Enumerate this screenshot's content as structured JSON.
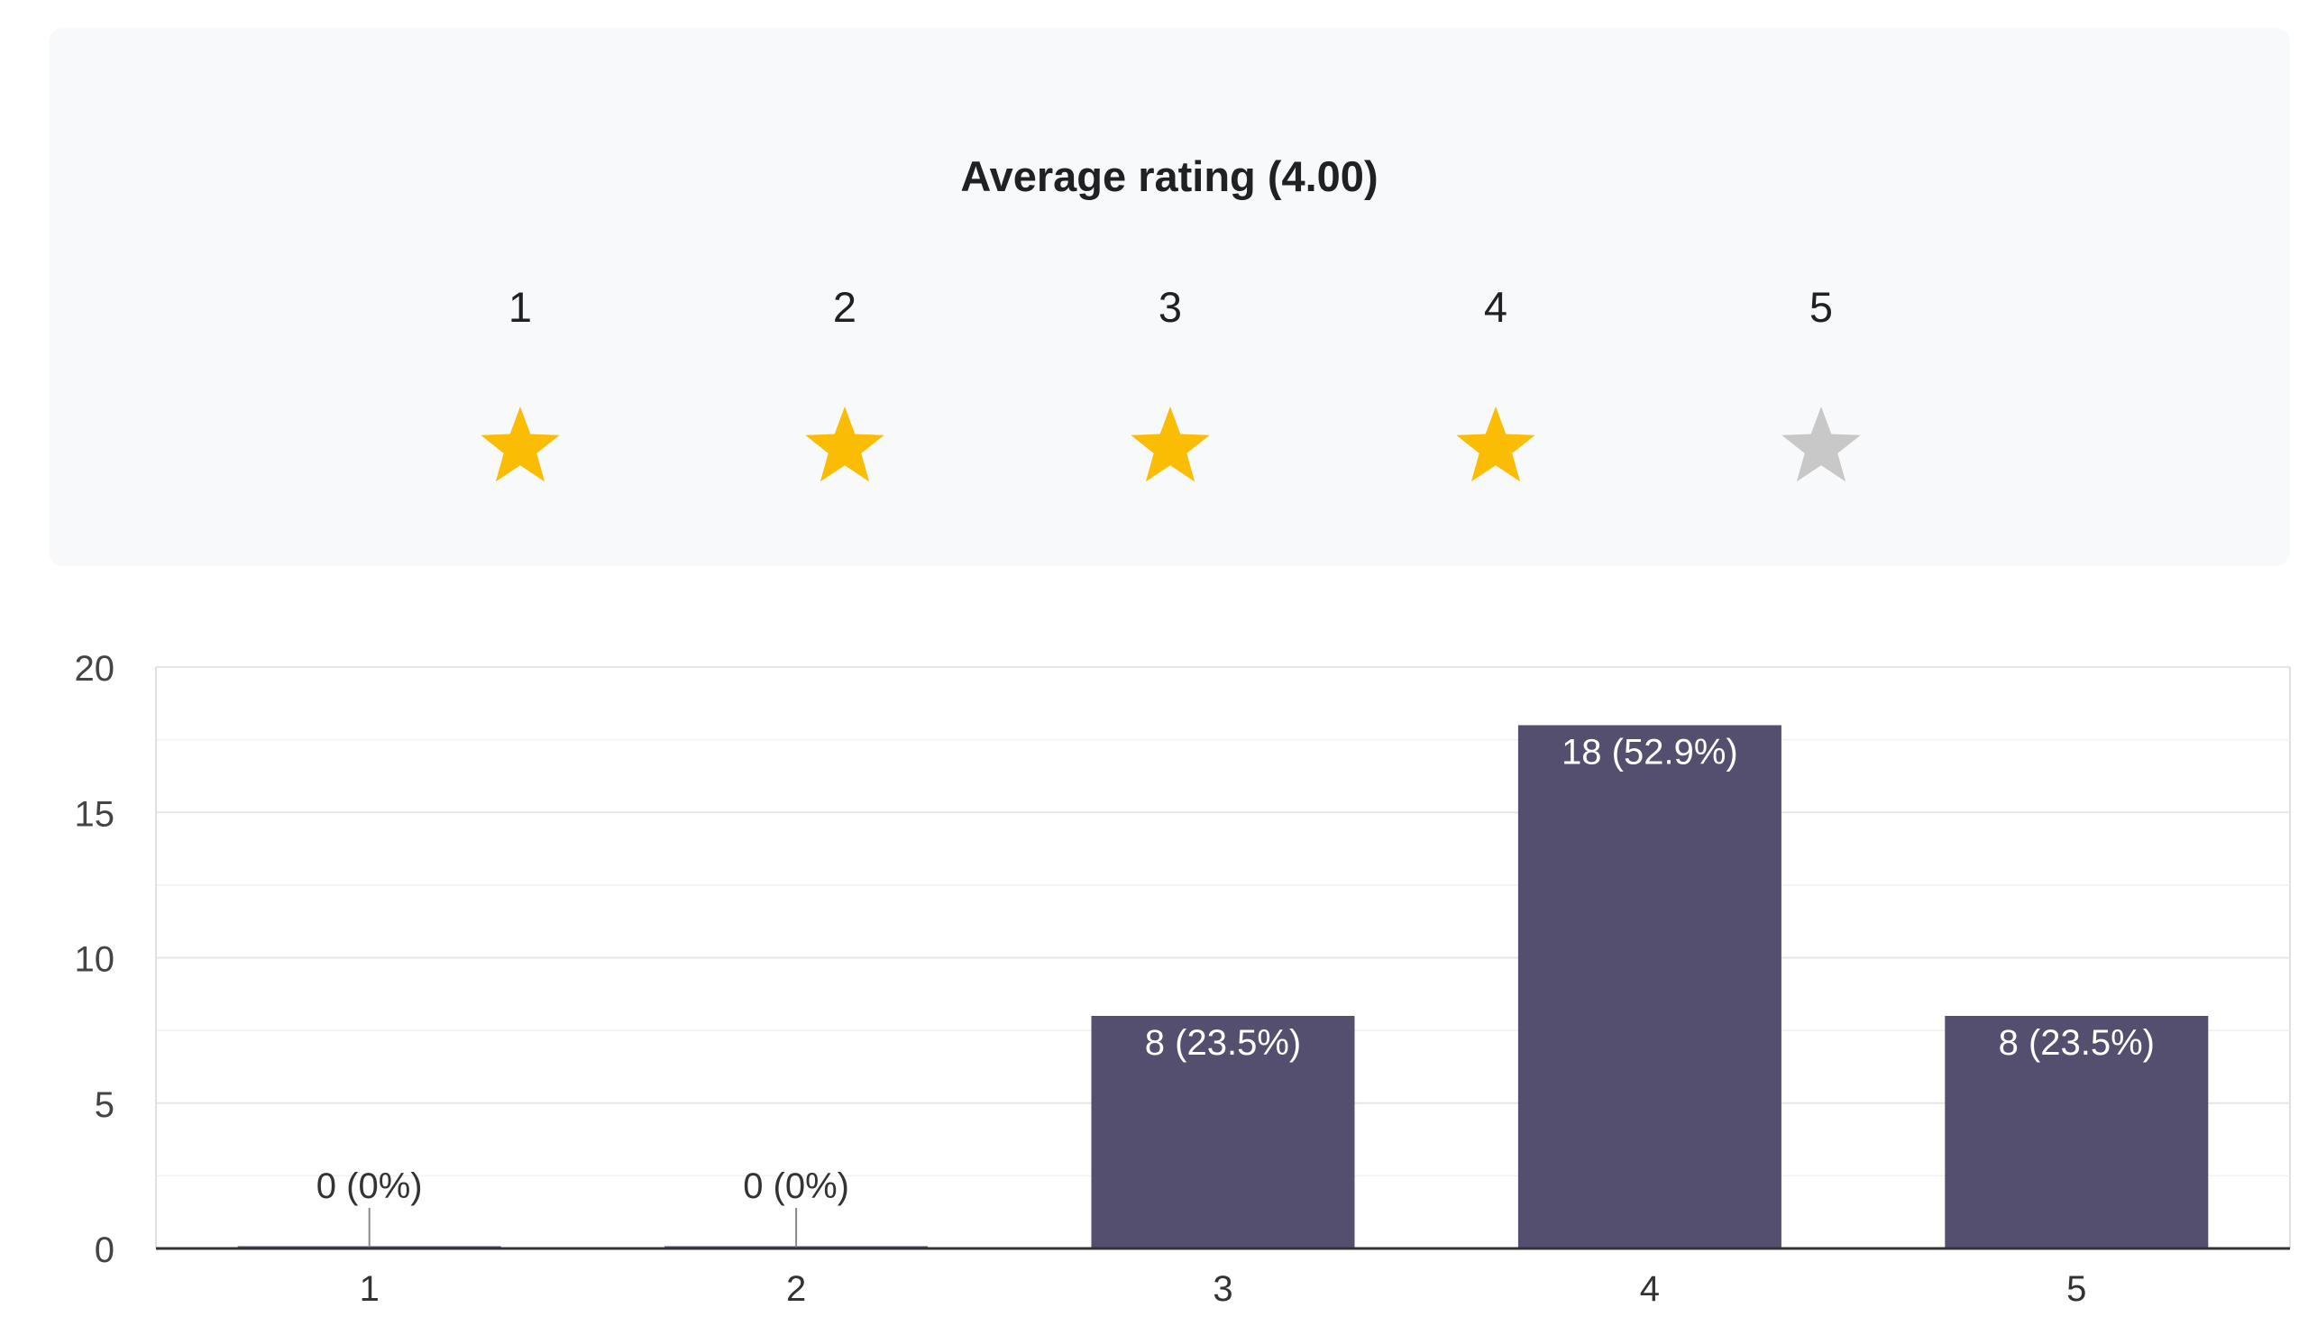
{
  "rating_summary": {
    "title": "Average rating (4.00)",
    "average": 4.0,
    "scale_labels": [
      "1",
      "2",
      "3",
      "4",
      "5"
    ],
    "star_icons": [
      "star-icon",
      "star-icon",
      "star-icon",
      "star-icon",
      "star-icon"
    ],
    "filled_color": "#fbbc04",
    "empty_color": "#c8c8c8"
  },
  "chart_data": {
    "type": "bar",
    "categories": [
      "1",
      "2",
      "3",
      "4",
      "5"
    ],
    "values": [
      0,
      0,
      8,
      18,
      8
    ],
    "data_labels": [
      "0 (0%)",
      "0 (0%)",
      "8 (23.5%)",
      "18 (52.9%)",
      "8 (23.5%)"
    ],
    "y_ticks": [
      "0",
      "5",
      "10",
      "15",
      "20"
    ],
    "ylim": [
      0,
      20
    ],
    "grid": true,
    "bar_color": "#544f6e",
    "title": "",
    "xlabel": "",
    "ylabel": ""
  }
}
